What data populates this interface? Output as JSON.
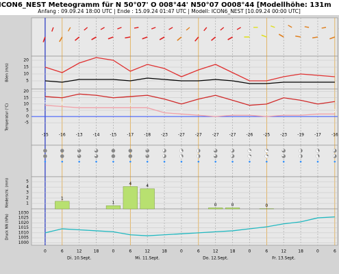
{
  "header": {
    "title": "ICON6_NEST Meteogramm für N 50°07' O 008°44' N50°07 O008°44   [Modellhöhe: 131m",
    "subtitle": "Anfang : 09.09.24 18:00 UTC | Ende : 15.09.24 01:47 UTC | Modell: ICON6_NEST [10.09.24 00:00 UTC]"
  },
  "chart_data": [
    {
      "type": "barbs",
      "x": [
        0,
        6,
        12,
        18,
        24,
        30,
        36,
        42,
        48,
        54,
        60,
        66,
        72,
        78,
        84,
        90,
        96,
        102
      ],
      "direction": [
        200,
        210,
        230,
        240,
        250,
        260,
        250,
        240,
        230,
        220,
        230,
        240,
        270,
        290,
        300,
        280,
        260,
        250
      ],
      "speed": [
        4,
        3,
        6,
        7,
        6,
        4,
        5,
        4,
        3,
        4,
        5,
        4,
        2,
        2,
        3,
        3,
        3,
        3
      ]
    },
    {
      "type": "line",
      "ylabel": "Böen (m/s)",
      "x": [
        0,
        6,
        12,
        18,
        24,
        30,
        36,
        42,
        48,
        54,
        60,
        66,
        72,
        78,
        84,
        90,
        96,
        102
      ],
      "ylim": [
        -1,
        23
      ],
      "yticks": [
        5,
        10,
        15,
        20
      ],
      "series": [
        {
          "color": "#e03030",
          "values": [
            15,
            11,
            18,
            22,
            20,
            12,
            17,
            14,
            8,
            13,
            17,
            11,
            5,
            5,
            8,
            10,
            9,
            8
          ]
        },
        {
          "color": "#000000",
          "values": [
            5,
            4,
            6,
            6,
            6,
            5,
            7,
            6,
            5,
            5,
            6,
            5,
            3,
            3,
            4,
            4,
            4,
            4
          ]
        }
      ]
    },
    {
      "type": "line",
      "ylabel": "Temperatur (°C)",
      "x": [
        0,
        6,
        12,
        18,
        24,
        30,
        36,
        42,
        48,
        54,
        60,
        66,
        72,
        78,
        84,
        90,
        96,
        102
      ],
      "ylim": [
        -23,
        22
      ],
      "yticks": [
        -5,
        0,
        5,
        10,
        15,
        20
      ],
      "series": [
        {
          "color": "#d02828",
          "values": [
            16,
            15,
            18,
            17,
            15,
            16,
            17,
            14,
            10,
            14,
            17,
            13,
            9,
            10,
            15,
            13,
            10,
            12
          ]
        },
        {
          "color": "#f0a0a8",
          "labels": true,
          "values": [
            9,
            8,
            7,
            7,
            7,
            7,
            7,
            3,
            2,
            1,
            0,
            1,
            1,
            0,
            1,
            1,
            2,
            2
          ]
        }
      ],
      "upper_values": [
        -15,
        -16,
        -13,
        -14,
        -15,
        -17,
        -18,
        -23,
        -27,
        -27,
        -27,
        -27,
        -26,
        -25,
        -23,
        -19,
        -17,
        -16
      ]
    },
    {
      "type": "cloud",
      "x": [
        0,
        6,
        12,
        18,
        24,
        30,
        36,
        42,
        48,
        54,
        60,
        66,
        72,
        78,
        84,
        90,
        96,
        102
      ],
      "values": [
        8,
        8,
        7,
        6,
        8,
        8,
        7,
        5,
        3,
        4,
        6,
        5,
        2,
        2,
        6,
        4,
        3,
        5
      ],
      "max": 8
    },
    {
      "type": "bar",
      "ylabel": "Niederschl. (mm)",
      "x": [
        6,
        24,
        30,
        36,
        60,
        66,
        78
      ],
      "values": [
        1.4,
        0.6,
        4.1,
        3.7,
        0.2,
        0.2,
        0.05
      ],
      "value_labels": [
        "1",
        "1",
        "4",
        "4",
        "0",
        "0",
        "0"
      ],
      "color": "#b8e070",
      "ylim": [
        0,
        5.9
      ],
      "yticks": [
        1,
        2,
        3,
        4,
        5
      ]
    },
    {
      "type": "line",
      "ylabel": "Druck NN (hPa)",
      "x": [
        0,
        6,
        12,
        18,
        24,
        30,
        36,
        42,
        48,
        54,
        60,
        66,
        72,
        78,
        84,
        90,
        96,
        102
      ],
      "ylim": [
        997.5,
        1034
      ],
      "yticks": [
        1000,
        1005,
        1010,
        1015,
        1020,
        1025,
        1030
      ],
      "series": [
        {
          "color": "#20b8c0",
          "values": [
            1010,
            1014,
            1013,
            1012,
            1011,
            1008,
            1007,
            1008,
            1009,
            1010,
            1011,
            1012,
            1014,
            1016,
            1019,
            1021,
            1025,
            1026
          ]
        }
      ],
      "xlim": [
        -4.8,
        103
      ],
      "xticks": [
        {
          "value": 0,
          "label": "0"
        },
        {
          "value": 6,
          "label": "6"
        },
        {
          "value": 12,
          "label": "12"
        },
        {
          "value": 18,
          "label": "18"
        },
        {
          "value": 24,
          "label": "0"
        },
        {
          "value": 30,
          "label": "6"
        },
        {
          "value": 36,
          "label": "12"
        },
        {
          "value": 42,
          "label": "18"
        },
        {
          "value": 48,
          "label": "0"
        },
        {
          "value": 54,
          "label": "6"
        },
        {
          "value": 60,
          "label": "12"
        },
        {
          "value": 66,
          "label": "18"
        },
        {
          "value": 72,
          "label": "0"
        },
        {
          "value": 78,
          "label": "6"
        },
        {
          "value": 84,
          "label": "12"
        },
        {
          "value": 90,
          "label": "18"
        },
        {
          "value": 96,
          "label": "0"
        },
        {
          "value": 102,
          "label": "6"
        }
      ],
      "day_labels": [
        {
          "value": 12,
          "label": "Di. 10.Sept."
        },
        {
          "value": 36,
          "label": "Mi. 11.Sept."
        },
        {
          "value": 60,
          "label": "Do. 12.Sept."
        },
        {
          "value": 84,
          "label": "Fr. 13.Sept."
        }
      ]
    }
  ]
}
